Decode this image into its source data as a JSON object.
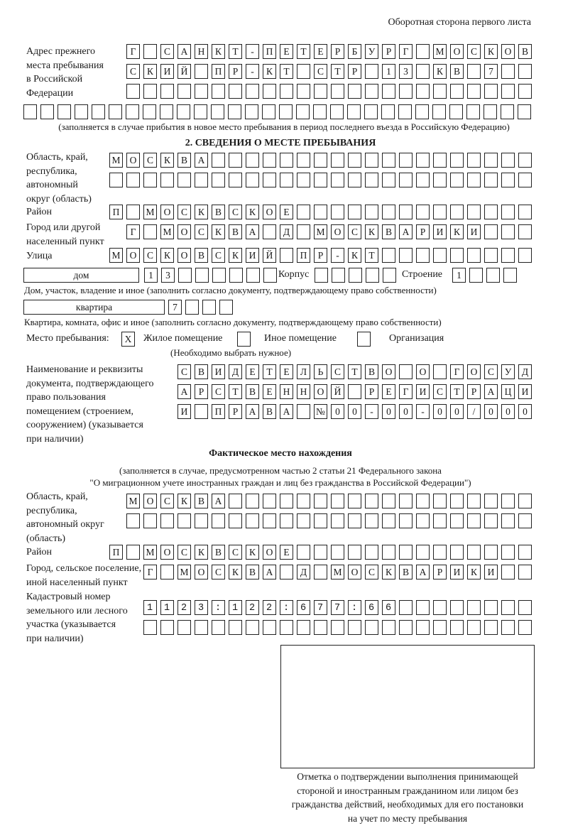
{
  "header": {
    "side_note": "Оборотная сторона первого листа"
  },
  "previous_address": {
    "label": "Адрес прежнего\nместа пребывания\nв Российской\nФедерации",
    "rows": [
      "Г САНКТ-ПЕТЕРБУРГ МОСКОВ",
      "СКИЙ ПР-КТ СТР 13 КВ 7  ",
      "",
      ""
    ],
    "note": "(заполняется в случае прибытия в новое место пребывания в период последнего въезда в Российскую Федерацию)"
  },
  "section2": {
    "title": "2. СВЕДЕНИЯ О МЕСТЕ ПРЕБЫВАНИЯ",
    "region_label": "Область, край,\nреспублика,\nавтономный\nокруг (область)",
    "region_rows": [
      "МОСКВА",
      ""
    ],
    "district_label": "Район",
    "district": "П МОСКВСКОЕ",
    "city_label": "Город или другой\nнаселенный пункт",
    "city": "Г МОСКВА Д МОСКВАРИКИ",
    "street_label": "Улица",
    "street": "МОСКОВСКИЙ ПР-КТ",
    "house_type": "дом",
    "house": "13",
    "korpus_label": "Корпус",
    "korpus": "",
    "building_label": "Строение",
    "building": "1",
    "house_note": "Дом, участок, владение и иное (заполнить согласно документу, подтверждающему право собственности)",
    "flat_type": "квартира",
    "flat": "7",
    "flat_note": "Квартира, комната, офис и иное (заполнить согласно документу, подтверждающему право собственности)",
    "stay_label": "Место пребывания:",
    "stay_options": [
      {
        "label": "Жилое помещение",
        "mark": "Х",
        "checked": true
      },
      {
        "label": "Иное помещение",
        "mark": "",
        "checked": false
      },
      {
        "label": "Организация",
        "mark": "",
        "checked": false
      }
    ],
    "stay_hint": "(Необходимо выбрать нужное)",
    "doc_label": "Наименование и реквизиты\nдокумента, подтверждающего\nправо пользования\nпомещением (строением,\nсооружением) (указывается\nпри наличии)",
    "doc_rows": [
      "СВИДЕТЕЛЬСТВО О ГОСУД",
      "АРСТВЕННОЙ РЕГИСТРАЦИ",
      "И ПРАВА №00-00-00/000"
    ]
  },
  "actual": {
    "title": "Фактическое место нахождения",
    "note_line1": "(заполняется в случае, предусмотренном частью 2 статьи 21 Федерального закона",
    "note_line2": "\"О миграционном учете иностранных граждан и лиц без гражданства в Российской Федерации\")",
    "region_label": "Область, край,\nреспублика,\nавтономный округ\n(область)",
    "region_rows": [
      "МОСКВА",
      ""
    ],
    "district_label": "Район",
    "district": "П МОСКВСКОЕ",
    "city_label": "Город, сельское поселение,\nиной населенный пункт",
    "city": "Г МОСКВА Д МОСКВАРИКИ",
    "cadastre_label": "Кадастровый номер\nземельного или лесного\nучастка (указывается\nпри наличии)",
    "cadastre_rows": [
      "1123:122:677:66",
      ""
    ]
  },
  "stamp": {
    "caption": "Отметка о подтверждении выполнения принимающей\nстороной и иностранным гражданином или лицом без\nгражданства действий, необходимых для его постановки\nна учет по месту пребывания"
  }
}
